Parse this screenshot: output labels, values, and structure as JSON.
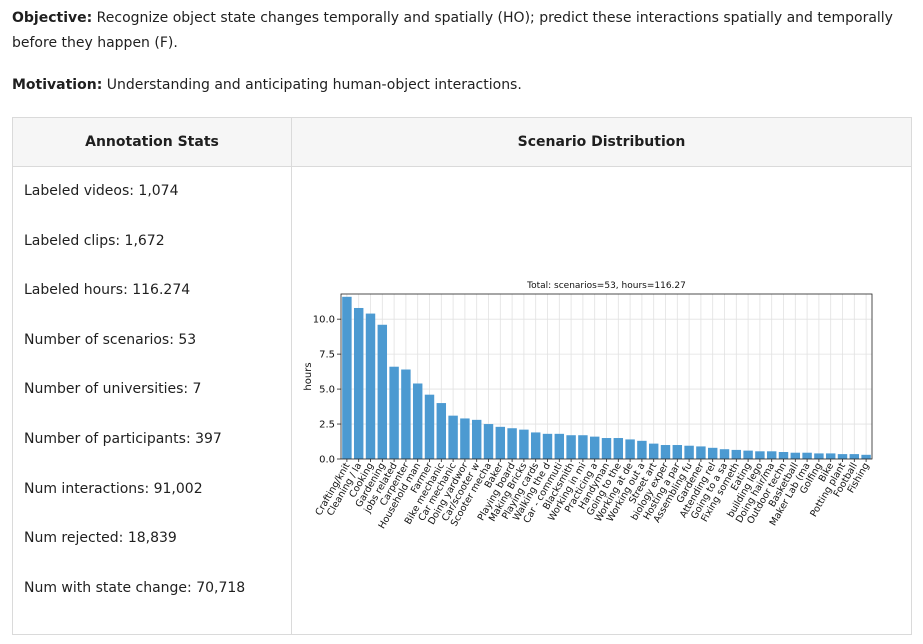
{
  "objective": {
    "label": "Objective:",
    "text": " Recognize object state changes temporally and spatially (HO); predict these interactions spatially and temporally before they happen (F)."
  },
  "motivation": {
    "label": "Motivation:",
    "text": " Understanding and anticipating human-object interactions."
  },
  "table": {
    "col1_header": "Annotation Stats",
    "col2_header": "Scenario Distribution",
    "stats": [
      "Labeled videos: 1,074",
      "Labeled clips: 1,672",
      "Labeled hours: 116.274",
      "Number of scenarios: 53",
      "Number of universities: 7",
      "Number of participants: 397",
      "Num interactions: 91,002",
      "Num rejected: 18,839",
      "Num with state change: 70,718"
    ]
  },
  "colors": {
    "bar": "#4c9ad1",
    "grid": "#e2e2e2"
  },
  "chart_data": {
    "type": "bar",
    "title": "Total: scenarios=53, hours=116.27",
    "xlabel": "",
    "ylabel": "hours",
    "ylim": [
      0,
      11.8
    ],
    "yticks": [
      "0.0",
      "2.5",
      "5.0",
      "7.5",
      "10.0"
    ],
    "ytick_values": [
      0,
      2.5,
      5,
      7.5,
      10
    ],
    "grid": true,
    "categories": [
      "Crafting/knit",
      "Cleaning / la",
      "Cooking",
      "Gardening",
      "jobs related",
      "Carpenter",
      "Household man",
      "Farmer",
      "Bike mechanic",
      "Car mechanic",
      "Doing yardwor",
      "Car/scooter w",
      "Scooter mecha",
      "Baker",
      "Playing board",
      "Making Bricks",
      "Playing cards",
      "Walking the d",
      "Car - commuti",
      "Blacksmith",
      "Working in mi",
      "Practicing a",
      "Handyman",
      "Going to the",
      "Working at de",
      "Working out a",
      "Street art",
      "biology exper",
      "Hosting a par",
      "Assembling fu",
      "Gardener",
      "Attending rel",
      "Going to a sa",
      "Fixing someth",
      "Eating",
      "building lego",
      "Doing hair/ma",
      "Outdoor techn",
      "Basketball",
      "Maker Lab (ma",
      "Golfing",
      "Bike",
      "Potting plant",
      "Football",
      "Fishing"
    ],
    "values": [
      11.6,
      10.8,
      10.4,
      9.6,
      6.6,
      6.4,
      5.4,
      4.6,
      4.0,
      3.1,
      2.9,
      2.8,
      2.5,
      2.3,
      2.2,
      2.1,
      1.9,
      1.8,
      1.8,
      1.7,
      1.7,
      1.6,
      1.5,
      1.5,
      1.4,
      1.3,
      1.1,
      1.0,
      1.0,
      0.95,
      0.9,
      0.8,
      0.7,
      0.65,
      0.6,
      0.55,
      0.55,
      0.5,
      0.45,
      0.45,
      0.4,
      0.4,
      0.35,
      0.35,
      0.3
    ]
  }
}
